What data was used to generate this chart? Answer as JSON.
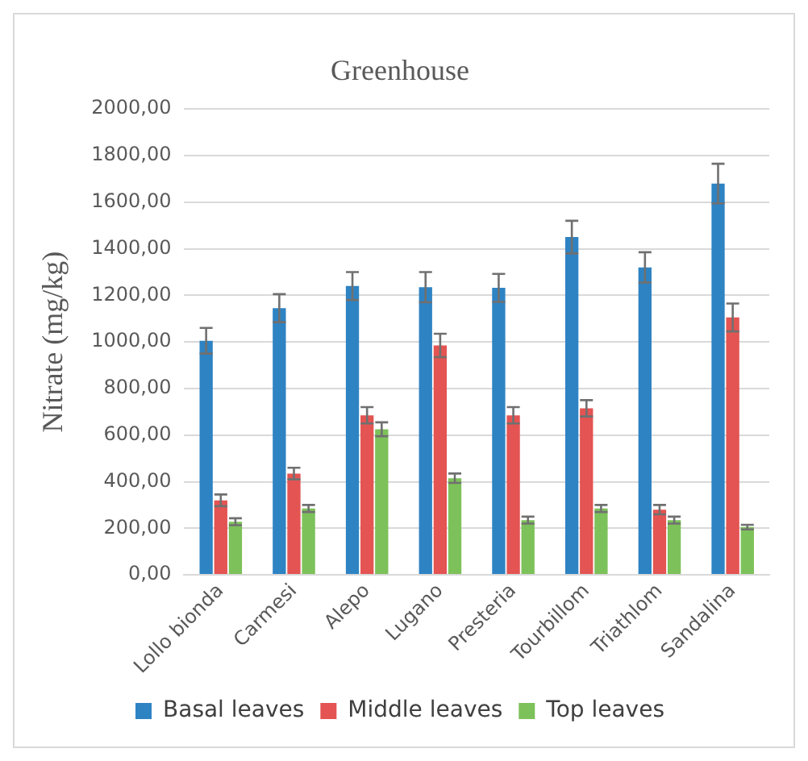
{
  "chart_data": {
    "type": "bar",
    "title": "Greenhouse",
    "ylabel": "Nitrate (mg/kg)",
    "categories": [
      "Lollo bionda",
      "Carmesi",
      "Alepo",
      "Lugano",
      "Presteria",
      "Tourbillom",
      "Triathlom",
      "Sandalina"
    ],
    "series": [
      {
        "name": "Basal leaves",
        "color": "#2e83c3",
        "values": [
          1005,
          1145,
          1240,
          1235,
          1232,
          1450,
          1320,
          1680
        ],
        "errors": [
          55,
          60,
          60,
          65,
          60,
          70,
          65,
          85
        ]
      },
      {
        "name": "Middle leaves",
        "color": "#e35452",
        "values": [
          320,
          435,
          685,
          985,
          685,
          715,
          280,
          1105
        ],
        "errors": [
          25,
          25,
          35,
          50,
          35,
          35,
          20,
          60
        ]
      },
      {
        "name": "Top leaves",
        "color": "#7dc15a",
        "values": [
          228,
          285,
          625,
          415,
          235,
          285,
          235,
          205
        ],
        "errors": [
          15,
          15,
          30,
          20,
          15,
          15,
          15,
          10
        ]
      }
    ],
    "ylim": [
      0,
      2000
    ],
    "yticks": [
      {
        "value": 0,
        "label": "0,00"
      },
      {
        "value": 200,
        "label": "200,00"
      },
      {
        "value": 400,
        "label": "400,00"
      },
      {
        "value": 600,
        "label": "600,00"
      },
      {
        "value": 800,
        "label": "800,00"
      },
      {
        "value": 1000,
        "label": "1000,00"
      },
      {
        "value": 1200,
        "label": "1200,00"
      },
      {
        "value": 1400,
        "label": "1400,00"
      },
      {
        "value": 1600,
        "label": "1600,00"
      },
      {
        "value": 1800,
        "label": "1800,00"
      },
      {
        "value": 2000,
        "label": "2000,00"
      }
    ],
    "grid": "y",
    "legend": "bottom"
  }
}
